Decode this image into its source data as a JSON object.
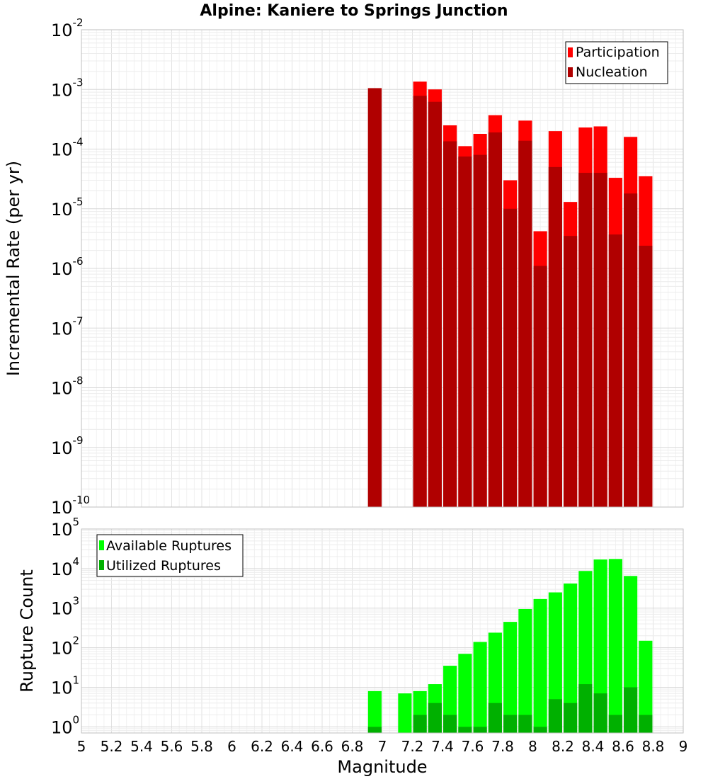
{
  "chart_data": [
    {
      "type": "bar",
      "title": "Alpine: Kaniere to Springs Junction",
      "xlabel": "",
      "ylabel": "Incremental Rate (per yr)",
      "y_scale": "log",
      "ylim": [
        1e-10,
        0.01
      ],
      "xlim": [
        5,
        9
      ],
      "ytick_labels": [
        {
          "base": "10",
          "exp": "-10",
          "value": 1e-10
        },
        {
          "base": "10",
          "exp": "-9",
          "value": 1e-09
        },
        {
          "base": "10",
          "exp": "-8",
          "value": 1e-08
        },
        {
          "base": "10",
          "exp": "-7",
          "value": 1e-07
        },
        {
          "base": "10",
          "exp": "-6",
          "value": 1e-06
        },
        {
          "base": "10",
          "exp": "-5",
          "value": 1e-05
        },
        {
          "base": "10",
          "exp": "-4",
          "value": 0.0001
        },
        {
          "base": "10",
          "exp": "-3",
          "value": 0.001
        },
        {
          "base": "10",
          "exp": "-2",
          "value": 0.01
        }
      ],
      "legend": {
        "placement": "top-right",
        "entries": [
          "Participation",
          "Nucleation"
        ]
      },
      "grid": true,
      "bar_width": 0.09,
      "x": [
        6.95,
        7.25,
        7.35,
        7.45,
        7.55,
        7.65,
        7.75,
        7.85,
        7.95,
        8.05,
        8.15,
        8.25,
        8.35,
        8.45,
        8.55,
        8.65,
        8.75
      ],
      "series": [
        {
          "name": "Participation",
          "color": "#ff0000",
          "values": [
            0.00105,
            0.00135,
            0.001,
            0.00025,
            0.000112,
            0.00018,
            0.00037,
            3e-05,
            0.0003,
            4.2e-06,
            0.0002,
            1.3e-05,
            0.00023,
            0.00024,
            3.3e-05,
            0.00016,
            3.5e-05
          ]
        },
        {
          "name": "Nucleation",
          "color": "#b00000",
          "values": [
            0.00105,
            0.00078,
            0.00062,
            0.000135,
            7.5e-05,
            8e-05,
            0.00019,
            1e-05,
            0.000138,
            1.1e-06,
            5e-05,
            3.5e-06,
            4e-05,
            4e-05,
            3.7e-06,
            1.8e-05,
            2.4e-06
          ]
        }
      ]
    },
    {
      "type": "bar",
      "title": "",
      "xlabel": "Magnitude",
      "ylabel": "Rupture Count",
      "y_scale": "log",
      "ylim": [
        0.7,
        100000
      ],
      "xlim": [
        5,
        9
      ],
      "ytick_labels": [
        {
          "base": "10",
          "exp": "0",
          "value": 1
        },
        {
          "base": "10",
          "exp": "1",
          "value": 10
        },
        {
          "base": "10",
          "exp": "2",
          "value": 100
        },
        {
          "base": "10",
          "exp": "3",
          "value": 1000
        },
        {
          "base": "10",
          "exp": "4",
          "value": 10000
        },
        {
          "base": "10",
          "exp": "5",
          "value": 100000
        }
      ],
      "xtick_labels": [
        "5",
        "5.2",
        "5.4",
        "5.6",
        "5.8",
        "6",
        "6.2",
        "6.4",
        "6.6",
        "6.8",
        "7",
        "7.2",
        "7.4",
        "7.6",
        "7.8",
        "8",
        "8.2",
        "8.4",
        "8.6",
        "8.8",
        "9"
      ],
      "legend": {
        "placement": "top-left",
        "entries": [
          "Available Ruptures",
          "Utilized Ruptures"
        ]
      },
      "grid": true,
      "bar_width": 0.09,
      "x": [
        6.95,
        7.15,
        7.25,
        7.35,
        7.45,
        7.55,
        7.65,
        7.75,
        7.85,
        7.95,
        8.05,
        8.15,
        8.25,
        8.35,
        8.45,
        8.55,
        8.65,
        8.75
      ],
      "series": [
        {
          "name": "Available Ruptures",
          "color": "#00ff00",
          "values": [
            8,
            7,
            8,
            12,
            35,
            70,
            140,
            240,
            450,
            950,
            1700,
            2500,
            4200,
            8700,
            17000,
            17500,
            6500,
            150
          ]
        },
        {
          "name": "Utilized Ruptures",
          "color": "#00b000",
          "values": [
            1,
            0,
            2,
            4,
            2,
            1,
            1,
            4,
            2,
            2,
            1,
            5,
            4,
            12,
            7,
            2,
            10,
            2
          ]
        }
      ]
    }
  ]
}
